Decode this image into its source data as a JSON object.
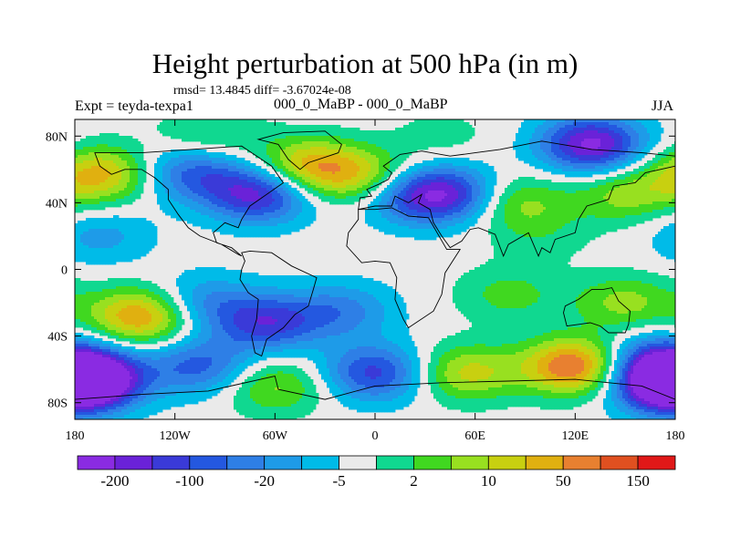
{
  "chart_data": {
    "type": "heatmap",
    "title": "Height perturbation at 500 hPa (in m)",
    "stats_line": "rmsd= 13.4845 diff= -3.67024e-08",
    "experiment": "Expt = teyda-texpa1",
    "subtitle": "000_0_MaBP - 000_0_MaBP",
    "season": "JJA",
    "x_range": [
      -180,
      180
    ],
    "y_range": [
      -90,
      90
    ],
    "x_ticks": [
      {
        "value": -180,
        "label": "180"
      },
      {
        "value": -120,
        "label": "120W"
      },
      {
        "value": -60,
        "label": "60W"
      },
      {
        "value": 0,
        "label": "0"
      },
      {
        "value": 60,
        "label": "60E"
      },
      {
        "value": 120,
        "label": "120E"
      },
      {
        "value": 180,
        "label": "180"
      }
    ],
    "y_ticks": [
      {
        "value": 80,
        "label": "80N"
      },
      {
        "value": 40,
        "label": "40N"
      },
      {
        "value": 0,
        "label": "0"
      },
      {
        "value": -40,
        "label": "40S"
      },
      {
        "value": -80,
        "label": "80S"
      }
    ],
    "colorbar": {
      "colors": [
        "#8a2be2",
        "#6a22d8",
        "#3a3ad8",
        "#2458e0",
        "#2e7fe6",
        "#1e9be8",
        "#00bbe8",
        "#eaeaea",
        "#10d890",
        "#40d820",
        "#98e020",
        "#c8d010",
        "#e0b010",
        "#e88030",
        "#e05020",
        "#e01818"
      ],
      "labels": [
        {
          "after_index": 0,
          "text": "-200"
        },
        {
          "after_index": 2,
          "text": "-100"
        },
        {
          "after_index": 4,
          "text": "-20"
        },
        {
          "after_index": 6,
          "text": "-5"
        },
        {
          "after_index": 8,
          "text": "2"
        },
        {
          "after_index": 10,
          "text": "10"
        },
        {
          "after_index": 12,
          "text": "50"
        },
        {
          "after_index": 14,
          "text": "150"
        }
      ]
    },
    "field_anomalies": [
      {
        "lon": -165,
        "lat": 57,
        "level": 5
      },
      {
        "lon": -110,
        "lat": 58,
        "level": -4
      },
      {
        "lon": -70,
        "lat": 45,
        "level": -6
      },
      {
        "lon": -40,
        "lat": 62,
        "level": 5
      },
      {
        "lon": -5,
        "lat": 55,
        "level": 4
      },
      {
        "lon": 20,
        "lat": 45,
        "level": -4
      },
      {
        "lon": 45,
        "lat": 45,
        "level": -5
      },
      {
        "lon": 85,
        "lat": 40,
        "level": 3
      },
      {
        "lon": 150,
        "lat": 45,
        "level": 3
      },
      {
        "lon": 130,
        "lat": 75,
        "level": -7
      },
      {
        "lon": -100,
        "lat": 80,
        "level": 2
      },
      {
        "lon": 40,
        "lat": 80,
        "level": 1
      },
      {
        "lon": -165,
        "lat": 20,
        "level": -2
      },
      {
        "lon": 100,
        "lat": 20,
        "level": 1
      },
      {
        "lon": -140,
        "lat": -28,
        "level": 6
      },
      {
        "lon": -105,
        "lat": -20,
        "level": -3
      },
      {
        "lon": -65,
        "lat": -32,
        "level": -5
      },
      {
        "lon": -20,
        "lat": -25,
        "level": -3
      },
      {
        "lon": 80,
        "lat": -15,
        "level": 2
      },
      {
        "lon": 150,
        "lat": -20,
        "level": 3
      },
      {
        "lon": -170,
        "lat": -65,
        "level": -8
      },
      {
        "lon": -105,
        "lat": -58,
        "level": -4
      },
      {
        "lon": -60,
        "lat": -70,
        "level": 3
      },
      {
        "lon": 0,
        "lat": -62,
        "level": -5
      },
      {
        "lon": 55,
        "lat": -62,
        "level": 4
      },
      {
        "lon": 120,
        "lat": -58,
        "level": 7
      },
      {
        "lon": 175,
        "lat": -70,
        "level": -7
      },
      {
        "lon": 165,
        "lat": -55,
        "level": -4
      }
    ],
    "coastline_polys": [
      [
        [
          -168,
          70
        ],
        [
          -140,
          70
        ],
        [
          -110,
          72
        ],
        [
          -80,
          74
        ],
        [
          -62,
          62
        ],
        [
          -55,
          52
        ],
        [
          -65,
          45
        ],
        [
          -75,
          38
        ],
        [
          -80,
          30
        ],
        [
          -82,
          25
        ],
        [
          -90,
          28
        ],
        [
          -97,
          22
        ],
        [
          -95,
          16
        ],
        [
          -86,
          13
        ],
        [
          -80,
          8
        ],
        [
          -82,
          9
        ],
        [
          -92,
          15
        ],
        [
          -105,
          20
        ],
        [
          -112,
          25
        ],
        [
          -118,
          33
        ],
        [
          -124,
          42
        ],
        [
          -124,
          48
        ],
        [
          -132,
          55
        ],
        [
          -140,
          60
        ],
        [
          -150,
          60
        ],
        [
          -158,
          57
        ],
        [
          -165,
          62
        ],
        [
          -168,
          70
        ]
      ],
      [
        [
          -80,
          10
        ],
        [
          -75,
          11
        ],
        [
          -62,
          10
        ],
        [
          -50,
          2
        ],
        [
          -35,
          -5
        ],
        [
          -37,
          -12
        ],
        [
          -40,
          -22
        ],
        [
          -48,
          -27
        ],
        [
          -55,
          -35
        ],
        [
          -65,
          -42
        ],
        [
          -68,
          -52
        ],
        [
          -72,
          -50
        ],
        [
          -74,
          -40
        ],
        [
          -71,
          -30
        ],
        [
          -70,
          -18
        ],
        [
          -76,
          -14
        ],
        [
          -81,
          -6
        ],
        [
          -80,
          0
        ],
        [
          -78,
          5
        ],
        [
          -80,
          10
        ]
      ],
      [
        [
          -55,
          82
        ],
        [
          -30,
          83
        ],
        [
          -20,
          75
        ],
        [
          -22,
          70
        ],
        [
          -40,
          64
        ],
        [
          -45,
          60
        ],
        [
          -52,
          66
        ],
        [
          -58,
          75
        ],
        [
          -70,
          78
        ],
        [
          -55,
          82
        ]
      ],
      [
        [
          -10,
          36
        ],
        [
          0,
          36
        ],
        [
          10,
          37
        ],
        [
          20,
          32
        ],
        [
          32,
          31
        ],
        [
          43,
          12
        ],
        [
          51,
          12
        ],
        [
          42,
          -2
        ],
        [
          40,
          -15
        ],
        [
          35,
          -25
        ],
        [
          20,
          -35
        ],
        [
          17,
          -30
        ],
        [
          12,
          -18
        ],
        [
          13,
          -5
        ],
        [
          9,
          4
        ],
        [
          0,
          5
        ],
        [
          -8,
          4
        ],
        [
          -17,
          14
        ],
        [
          -16,
          22
        ],
        [
          -10,
          30
        ],
        [
          -10,
          36
        ]
      ],
      [
        [
          -10,
          36
        ],
        [
          -9,
          43
        ],
        [
          -2,
          44
        ],
        [
          -5,
          48
        ],
        [
          2,
          51
        ],
        [
          8,
          54
        ],
        [
          10,
          58
        ],
        [
          5,
          62
        ],
        [
          15,
          69
        ],
        [
          28,
          71
        ],
        [
          45,
          68
        ],
        [
          60,
          70
        ],
        [
          75,
          72
        ],
        [
          100,
          77
        ],
        [
          130,
          72
        ],
        [
          160,
          70
        ],
        [
          180,
          68
        ],
        [
          180,
          62
        ],
        [
          162,
          58
        ],
        [
          156,
          52
        ],
        [
          143,
          50
        ],
        [
          140,
          42
        ],
        [
          127,
          38
        ],
        [
          122,
          30
        ],
        [
          120,
          22
        ],
        [
          108,
          18
        ],
        [
          105,
          10
        ],
        [
          100,
          13
        ],
        [
          98,
          8
        ],
        [
          92,
          22
        ],
        [
          80,
          15
        ],
        [
          77,
          8
        ],
        [
          72,
          21
        ],
        [
          62,
          25
        ],
        [
          57,
          24
        ],
        [
          52,
          17
        ],
        [
          45,
          13
        ],
        [
          40,
          20
        ],
        [
          35,
          28
        ],
        [
          33,
          36
        ],
        [
          26,
          40
        ],
        [
          28,
          45
        ],
        [
          20,
          40
        ],
        [
          12,
          44
        ],
        [
          10,
          38
        ],
        [
          0,
          38
        ],
        [
          -10,
          36
        ]
      ],
      [
        [
          114,
          -22
        ],
        [
          122,
          -18
        ],
        [
          130,
          -12
        ],
        [
          137,
          -12
        ],
        [
          142,
          -11
        ],
        [
          146,
          -19
        ],
        [
          153,
          -25
        ],
        [
          152,
          -33
        ],
        [
          150,
          -38
        ],
        [
          140,
          -38
        ],
        [
          135,
          -34
        ],
        [
          129,
          -32
        ],
        [
          115,
          -34
        ],
        [
          113,
          -26
        ],
        [
          114,
          -22
        ]
      ],
      [
        [
          -180,
          -78
        ],
        [
          -140,
          -75
        ],
        [
          -100,
          -73
        ],
        [
          -60,
          -64
        ],
        [
          -58,
          -72
        ],
        [
          -30,
          -78
        ],
        [
          0,
          -70
        ],
        [
          40,
          -68
        ],
        [
          80,
          -67
        ],
        [
          120,
          -66
        ],
        [
          160,
          -70
        ],
        [
          180,
          -78
        ],
        [
          180,
          -90
        ],
        [
          -180,
          -90
        ],
        [
          -180,
          -78
        ]
      ]
    ]
  }
}
